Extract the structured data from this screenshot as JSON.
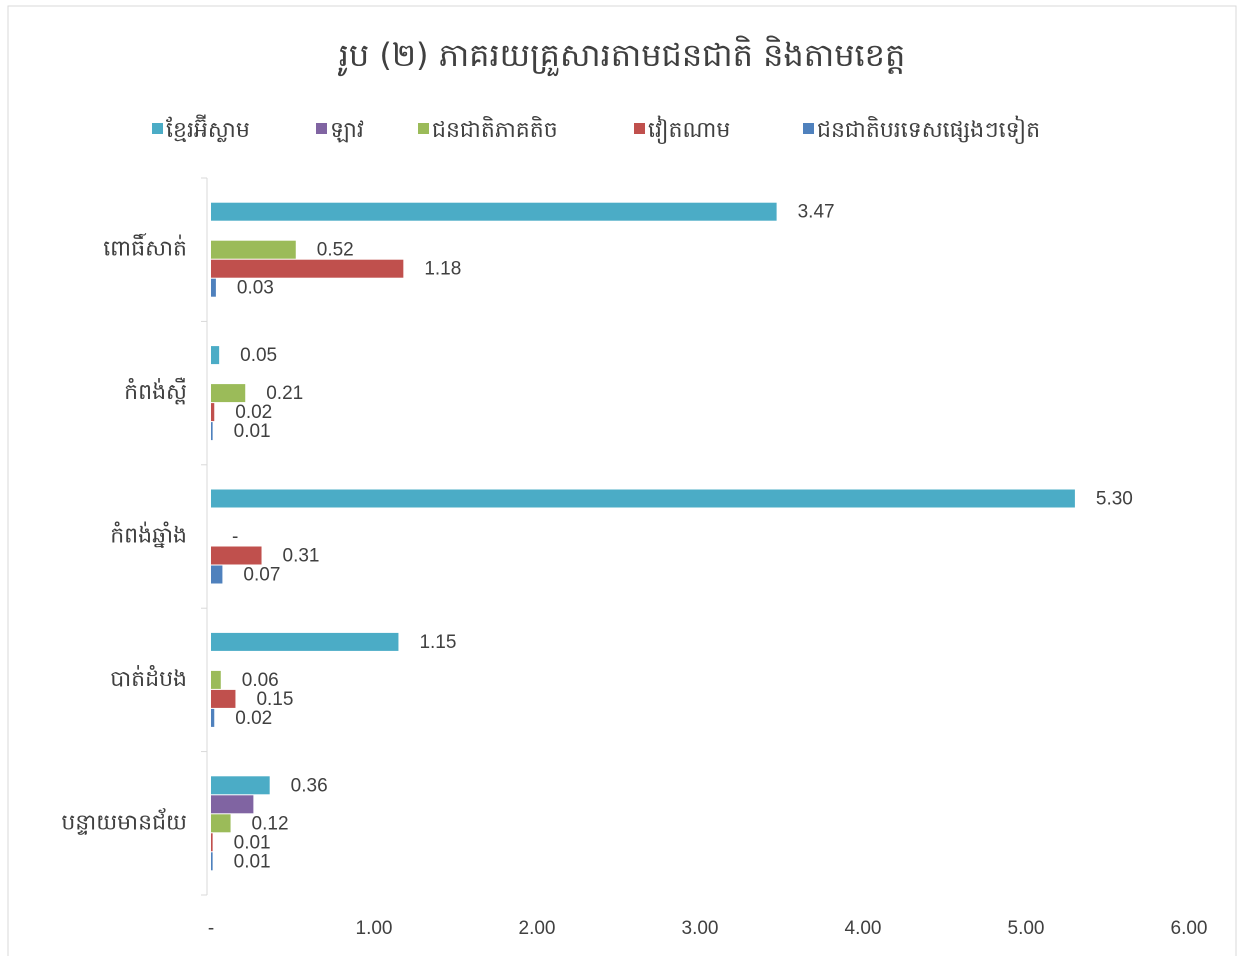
{
  "chart_data": {
    "type": "hbar",
    "title": "រូប (២) ភាគរយគ្រួសារតាមជនជាតិ និងតាមខេត្ត",
    "categories": [
      "ពោធិ៍សាត់",
      "កំពង់ស្ពឺ",
      "កំពង់ឆ្នាំង",
      "បាត់ដំបង",
      "បន្ទាយមានជ័យ"
    ],
    "series": [
      {
        "name": "ខ្មែរអ៊ីស្លាម",
        "color": "#4bacc6",
        "values": [
          3.47,
          0.05,
          5.3,
          1.15,
          0.36
        ],
        "value_labels": [
          "3.47",
          "0.05",
          "5.30",
          "1.15",
          "0.36"
        ]
      },
      {
        "name": "ឡាវ",
        "color": "#8064a2",
        "values": [
          null,
          null,
          null,
          null,
          0.26
        ],
        "value_labels": [
          null,
          null,
          null,
          null,
          null
        ]
      },
      {
        "name": "ជនជាតិភាគតិច",
        "color": "#9bbb59",
        "values": [
          0.52,
          0.21,
          0,
          0.06,
          0.12
        ],
        "value_labels": [
          "0.52",
          "0.21",
          "-",
          "0.06",
          "0.12"
        ]
      },
      {
        "name": "វៀតណាម",
        "color": "#c0504d",
        "values": [
          1.18,
          0.02,
          0.31,
          0.15,
          0.01
        ],
        "value_labels": [
          "1.18",
          "0.02",
          "0.31",
          "0.15",
          "0.01"
        ]
      },
      {
        "name": "ជនជាតិបរទេសផ្សេងៗទៀត",
        "color": "#4f81bd",
        "values": [
          0.03,
          0.01,
          0.07,
          0.02,
          0.01
        ],
        "value_labels": [
          "0.03",
          "0.01",
          "0.07",
          "0.02",
          "0.01"
        ]
      }
    ],
    "xlim": [
      0,
      6
    ],
    "xticks": [
      {
        "value": 0,
        "label": "-"
      },
      {
        "value": 1,
        "label": "1.00"
      },
      {
        "value": 2,
        "label": "2.00"
      },
      {
        "value": 3,
        "label": "3.00"
      },
      {
        "value": 4,
        "label": "4.00"
      },
      {
        "value": 5,
        "label": "5.00"
      },
      {
        "value": 6,
        "label": "6.00"
      }
    ],
    "legend": "top"
  }
}
